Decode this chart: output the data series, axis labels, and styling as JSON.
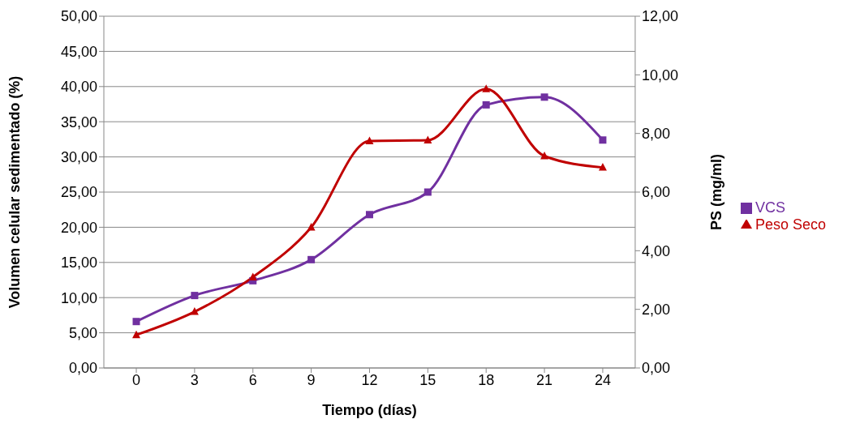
{
  "chart_data": {
    "type": "line",
    "xlabel": "Tiempo (días)",
    "ylabel": "Volumen celular sedimentado (%)",
    "y2label": "PS (mg/ml)",
    "categories": [
      "0",
      "3",
      "6",
      "9",
      "12",
      "15",
      "18",
      "21",
      "24"
    ],
    "series": [
      {
        "name": "VCS",
        "color": "#7030a0",
        "marker": "square",
        "values": [
          6.6,
          10.3,
          12.4,
          15.4,
          21.8,
          25.0,
          37.4,
          38.5,
          32.4
        ]
      },
      {
        "name": "Peso Seco",
        "color": "#c00000",
        "marker": "triangle",
        "axis": "y2",
        "values": [
          1.13,
          1.92,
          3.1,
          4.8,
          7.74,
          7.77,
          9.52,
          7.23,
          6.84
        ]
      }
    ],
    "ylim": [
      0,
      50
    ],
    "yticks": [
      {
        "value": 0,
        "label": "0,00"
      },
      {
        "value": 5,
        "label": "5,00"
      },
      {
        "value": 10,
        "label": "10,00"
      },
      {
        "value": 15,
        "label": "15,00"
      },
      {
        "value": 20,
        "label": "20,00"
      },
      {
        "value": 25,
        "label": "25,00"
      },
      {
        "value": 30,
        "label": "30,00"
      },
      {
        "value": 35,
        "label": "35,00"
      },
      {
        "value": 40,
        "label": "40,00"
      },
      {
        "value": 45,
        "label": "45,00"
      },
      {
        "value": 50,
        "label": "50,00"
      }
    ],
    "y2lim": [
      0,
      12
    ],
    "y2ticks": [
      {
        "value": 0,
        "label": "0,00"
      },
      {
        "value": 2,
        "label": "2,00"
      },
      {
        "value": 4,
        "label": "4,00"
      },
      {
        "value": 6,
        "label": "6,00"
      },
      {
        "value": 8,
        "label": "8,00"
      },
      {
        "value": 10,
        "label": "10,00"
      },
      {
        "value": 12,
        "label": "12,00"
      }
    ],
    "grid": "y",
    "legend": "right",
    "line_style": "solid"
  }
}
